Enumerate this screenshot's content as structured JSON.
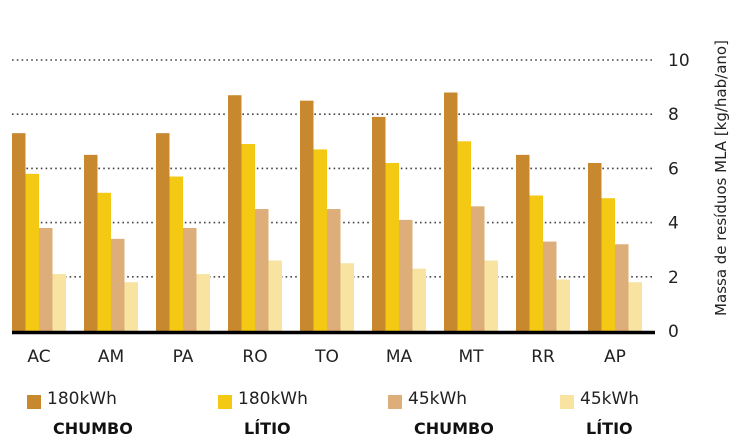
{
  "chart_data": {
    "type": "bar",
    "categories": [
      "AC",
      "AM",
      "PA",
      "RO",
      "TO",
      "MA",
      "MT",
      "RR",
      "AP"
    ],
    "series": [
      {
        "name": "180kWh",
        "sublabel": "CHUMBO",
        "color": "#C8892E",
        "values": [
          7.3,
          6.5,
          7.3,
          8.7,
          8.5,
          7.9,
          8.8,
          6.5,
          6.2
        ]
      },
      {
        "name": "180kWh",
        "sublabel": "LÍTIO",
        "color": "#F3C913",
        "values": [
          5.8,
          5.1,
          5.7,
          6.9,
          6.7,
          6.2,
          7.0,
          5.0,
          4.9
        ]
      },
      {
        "name": "45kWh",
        "sublabel": "CHUMBO",
        "color": "#DDAE7A",
        "values": [
          3.8,
          3.4,
          3.8,
          4.5,
          4.5,
          4.1,
          4.6,
          3.3,
          3.2
        ]
      },
      {
        "name": "45kWh",
        "sublabel": "LÍTIO",
        "color": "#F8E4A0",
        "values": [
          2.1,
          1.8,
          2.1,
          2.6,
          2.5,
          2.3,
          2.6,
          1.9,
          1.8
        ]
      }
    ],
    "ylabel": "Massa de resíduos MLA [kg/hab/ano]",
    "ylim": [
      0,
      10
    ],
    "yticks": [
      0,
      2,
      4,
      6,
      8,
      10
    ],
    "grid": "dotted horizontal",
    "axis_position": "right",
    "legend_position": "bottom"
  }
}
